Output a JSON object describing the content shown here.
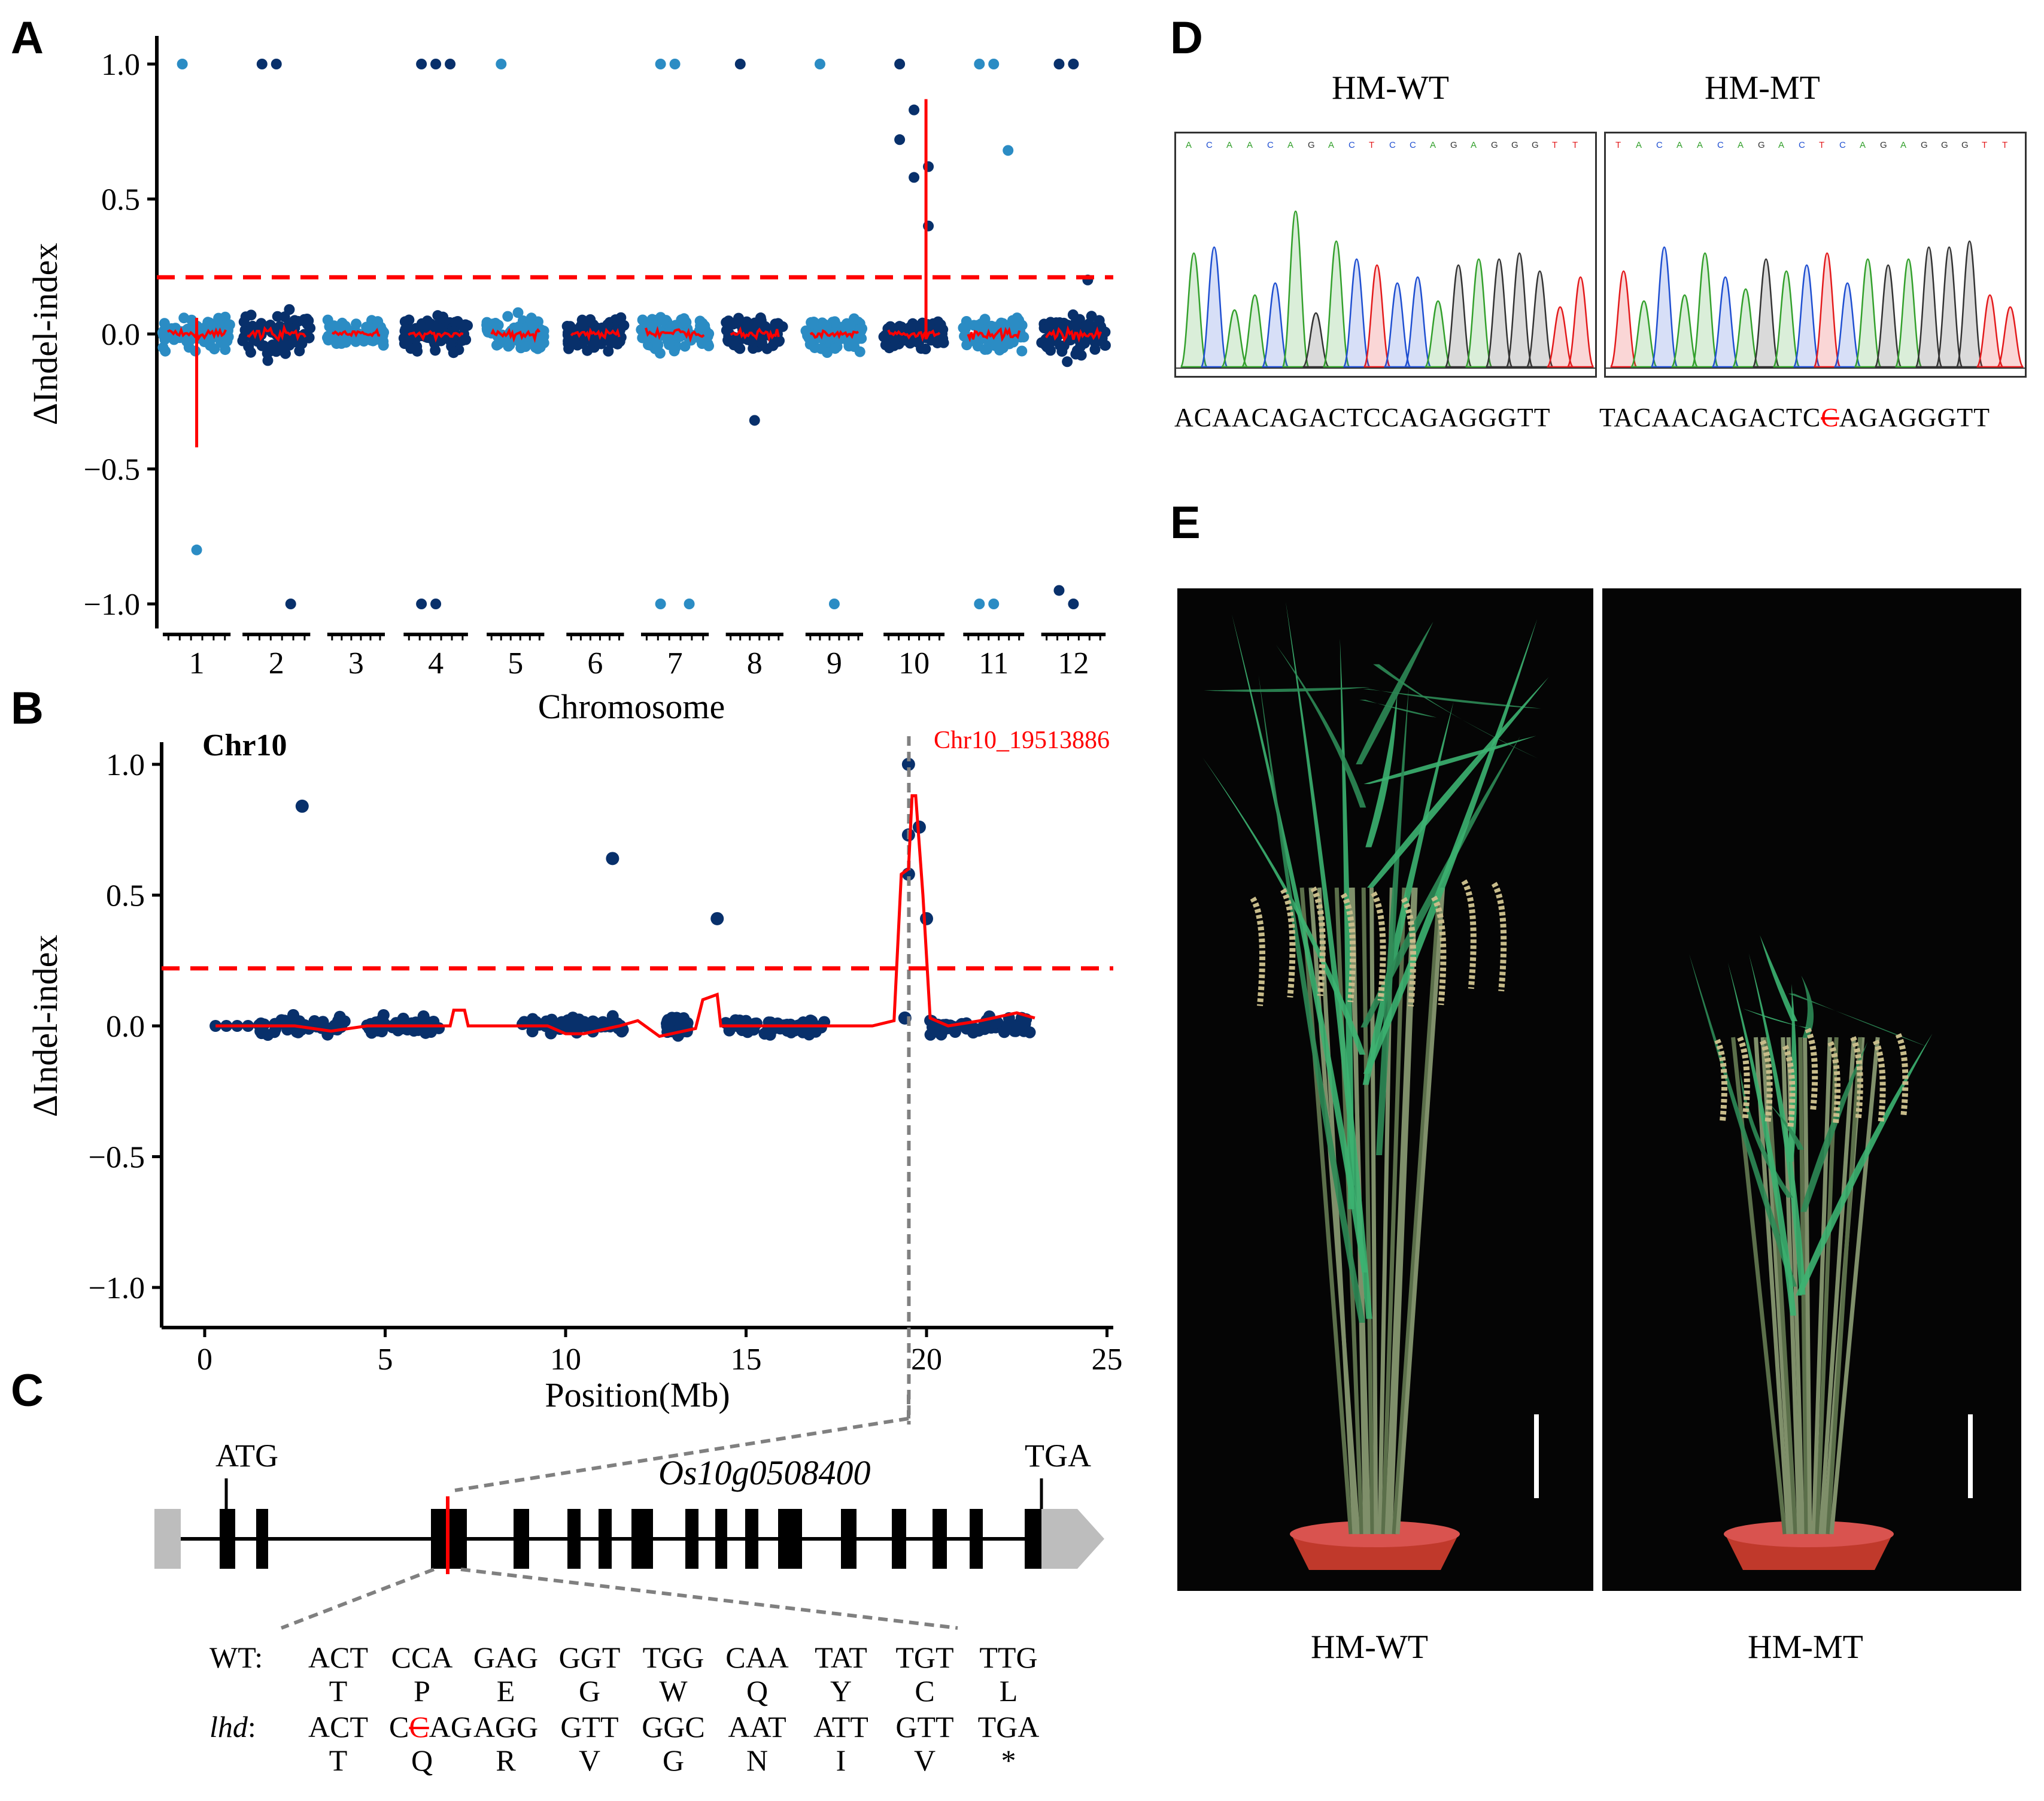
{
  "panels": {
    "a": "A",
    "b": "B",
    "c": "C",
    "d": "D",
    "e": "E"
  },
  "chart_data": [
    {
      "type": "scatter",
      "panel": "A",
      "title": "",
      "xlabel": "Chromosome",
      "ylabel": "ΔIndel-index",
      "ylim": [
        -1.1,
        1.1
      ],
      "yticks": [
        -1.0,
        -0.5,
        0.0,
        0.5,
        1.0
      ],
      "ytick_labels": [
        "−1.0",
        "−0.5",
        "0.0",
        "0.5",
        "1.0"
      ],
      "threshold": 0.21,
      "categories": [
        "1",
        "2",
        "3",
        "4",
        "5",
        "6",
        "7",
        "8",
        "9",
        "10",
        "11",
        "12"
      ],
      "series_colors": [
        "#2b8cc4",
        "#08306b"
      ],
      "smooth_color": "#ff0000",
      "outliers": [
        {
          "chr": 1,
          "values": [
            1.0,
            -0.8
          ]
        },
        {
          "chr": 2,
          "values": [
            1.0,
            1.0,
            -1.0
          ]
        },
        {
          "chr": 4,
          "values": [
            1.0,
            1.0,
            1.0,
            -1.0,
            -1.0
          ]
        },
        {
          "chr": 5,
          "values": [
            1.0
          ]
        },
        {
          "chr": 7,
          "values": [
            1.0,
            1.0,
            -1.0,
            -1.0
          ]
        },
        {
          "chr": 8,
          "values": [
            1.0,
            -0.32
          ]
        },
        {
          "chr": 9,
          "values": [
            1.0,
            -1.0
          ]
        },
        {
          "chr": 10,
          "values": [
            1.0,
            0.83,
            0.62,
            0.72,
            0.58,
            0.4
          ]
        },
        {
          "chr": 11,
          "values": [
            1.0,
            1.0,
            0.68,
            -1.0,
            -1.0
          ]
        },
        {
          "chr": 12,
          "values": [
            1.0,
            1.0,
            0.2,
            -0.95,
            -1.0
          ]
        }
      ],
      "smooth_spikes": [
        {
          "chr": 1,
          "min": -0.42,
          "max": 0.06
        },
        {
          "chr": 10,
          "min": -0.02,
          "max": 0.87
        }
      ]
    },
    {
      "type": "scatter",
      "panel": "B",
      "title": "Chr10",
      "annotation": "Chr10_19513886",
      "xlabel": "Position(Mb)",
      "ylabel": "ΔIndel-index",
      "xlim": [
        -1,
        25
      ],
      "xticks": [
        0,
        5,
        10,
        15,
        20,
        25
      ],
      "ylim": [
        -1.1,
        1.1
      ],
      "yticks": [
        -1.0,
        -0.5,
        0.0,
        0.5,
        1.0
      ],
      "ytick_labels": [
        "−1.0",
        "−0.5",
        "0.0",
        "0.5",
        "1.0"
      ],
      "threshold": 0.22,
      "marker_position": 19.51,
      "points_highlight": [
        {
          "x": 2.7,
          "y": 0.84
        },
        {
          "x": 11.3,
          "y": 0.64
        },
        {
          "x": 14.2,
          "y": 0.41
        },
        {
          "x": 19.5,
          "y": 1.0
        },
        {
          "x": 19.5,
          "y": 0.73
        },
        {
          "x": 19.5,
          "y": 0.58
        },
        {
          "x": 19.8,
          "y": 0.76
        },
        {
          "x": 20.0,
          "y": 0.41
        },
        {
          "x": 19.4,
          "y": 0.03
        }
      ],
      "smooth_line": [
        [
          0.3,
          0.0
        ],
        [
          2.5,
          0.0
        ],
        [
          3.5,
          -0.02
        ],
        [
          4.5,
          0.0
        ],
        [
          6.8,
          0.0
        ],
        [
          6.9,
          0.06
        ],
        [
          7.2,
          0.06
        ],
        [
          7.3,
          0.0
        ],
        [
          9.5,
          0.0
        ],
        [
          10.0,
          -0.03
        ],
        [
          10.5,
          -0.03
        ],
        [
          11.5,
          0.0
        ],
        [
          12.0,
          0.02
        ],
        [
          12.6,
          -0.04
        ],
        [
          13.6,
          -0.01
        ],
        [
          13.8,
          0.1
        ],
        [
          14.2,
          0.12
        ],
        [
          14.3,
          0.0
        ],
        [
          18.5,
          0.0
        ],
        [
          19.1,
          0.02
        ],
        [
          19.3,
          0.58
        ],
        [
          19.5,
          0.6
        ],
        [
          19.6,
          0.88
        ],
        [
          19.7,
          0.88
        ],
        [
          19.9,
          0.5
        ],
        [
          20.1,
          0.03
        ],
        [
          20.6,
          0.0
        ],
        [
          21.5,
          0.02
        ],
        [
          22.5,
          0.05
        ],
        [
          23.0,
          0.03
        ]
      ]
    }
  ],
  "gene_model": {
    "gene_name": "Os10g0508400",
    "start_codon": "ATG",
    "stop_codon": "TGA",
    "wt_label": "WT:",
    "mt_label_gene": "lhd",
    "mt_label_suffix": ":",
    "wt_codons": [
      "ACT",
      "CCA",
      "GAG",
      "GGT",
      "TGG",
      "CAA",
      "TAT",
      "TGT",
      "TTG"
    ],
    "wt_aas": [
      "T",
      "P",
      "E",
      "G",
      "W",
      "Q",
      "Y",
      "C",
      "L"
    ],
    "mt_codons_first": "ACT",
    "mt_codon2_prefix": "C",
    "mt_deleted_base": "C",
    "mt_codon2_suffix": "AG",
    "mt_codons_rest": [
      "AGG",
      "GTT",
      "GGC",
      "AAT",
      "ATT",
      "GTT",
      "TGA"
    ],
    "mt_aas": [
      "T",
      "Q",
      "R",
      "V",
      "G",
      "N",
      "I",
      "V",
      "*"
    ]
  },
  "sequencing": {
    "wt_title": "HM-WT",
    "mt_title": "HM-MT",
    "wt_top_bases": "ACAACAGACTCCAGAGGGTT",
    "mt_top_bases": "TACAACAGACTCAGAGGGTT",
    "wt_sequence": "ACAACAGACTCCAGAGGGTT",
    "mt_sequence_prefix": "TACAACAGACTC",
    "mt_deleted_base": "C",
    "mt_sequence_suffix": "AGAGGGTT"
  },
  "photos": {
    "wt_label": "HM-WT",
    "mt_label": "HM-MT"
  },
  "colors": {
    "light_blue": "#2b8cc4",
    "dark_blue": "#08306b",
    "red": "#ff0000",
    "grey_dash": "#808080",
    "base_A": "#33a02c",
    "base_C": "#1f4fd1",
    "base_G": "#333333",
    "base_T": "#e31a1c"
  }
}
